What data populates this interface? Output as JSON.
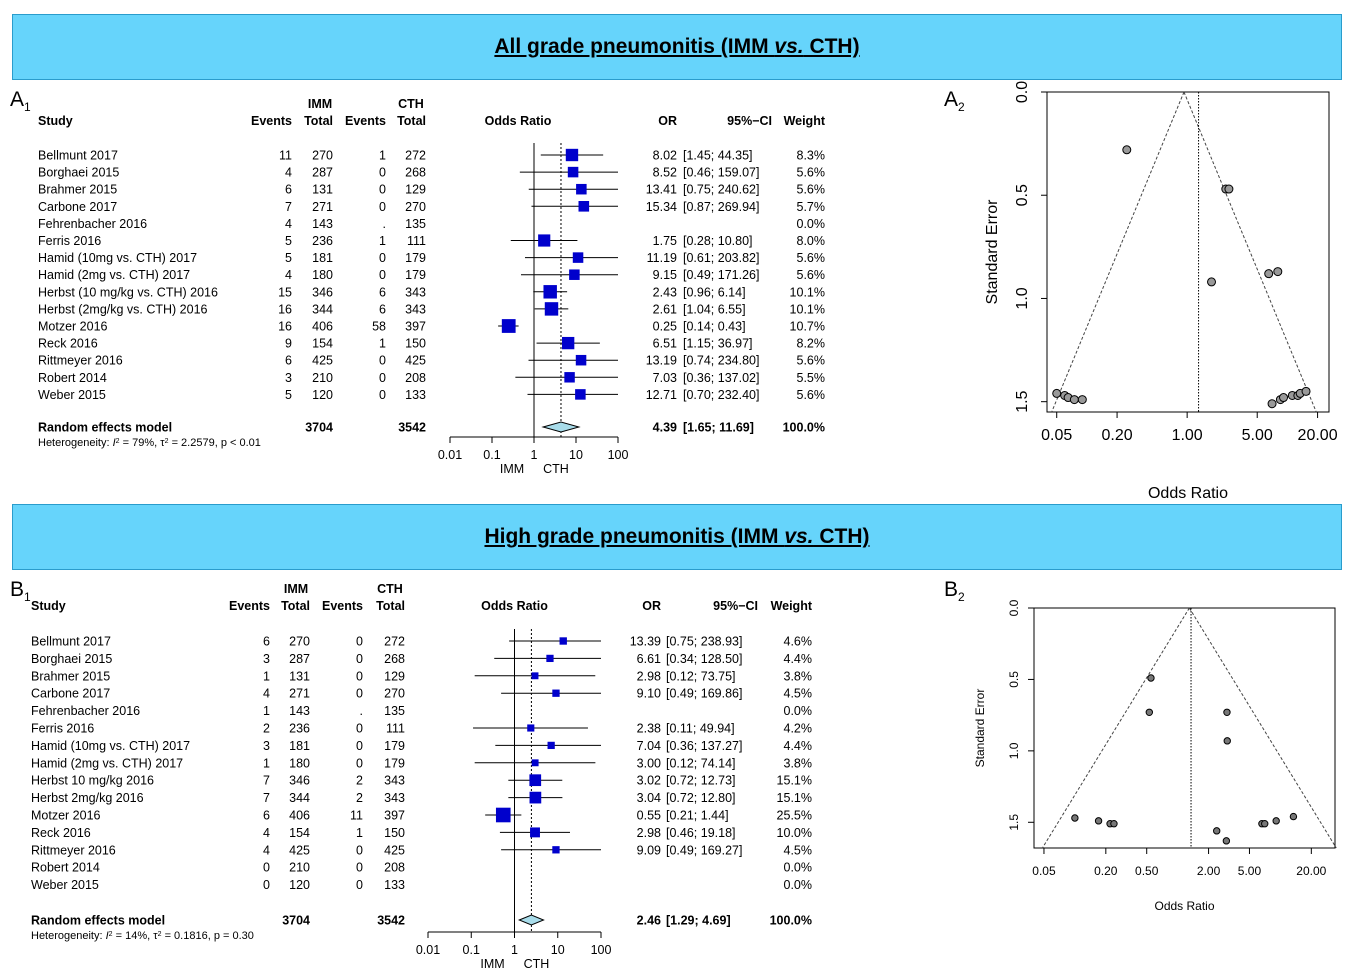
{
  "panels": [
    {
      "letter": "A",
      "title_main": "All grade pneumonitis (IMM ",
      "title_vs": "vs.",
      "title_tail": " CTH)",
      "forest_label": "A",
      "forest_sub": "1",
      "funnel_label": "A",
      "funnel_sub": "2"
    },
    {
      "letter": "B",
      "title_main": "High grade pneumonitis (IMM ",
      "title_vs": "vs.",
      "title_tail": " CTH)",
      "forest_label": "B",
      "forest_sub": "1",
      "funnel_label": "B",
      "funnel_sub": "2"
    }
  ],
  "chart_data": [
    {
      "type": "forest",
      "headers": {
        "imm": "IMM",
        "cth": "CTH",
        "study": "Study",
        "events": "Events",
        "total": "Total",
        "odds_ratio": "Odds Ratio",
        "or": "OR",
        "ci": "95%−CI",
        "weight": "Weight"
      },
      "studies": [
        {
          "study": "Bellmunt 2017",
          "imm_events": "11",
          "imm_total": "270",
          "cth_events": "1",
          "cth_total": "272",
          "or": 8.02,
          "lo": 1.45,
          "hi": 44.35,
          "or_text": "8.02",
          "ci_text": "[1.45; 44.35]",
          "weight": "8.3%"
        },
        {
          "study": "Borghaei 2015",
          "imm_events": "4",
          "imm_total": "287",
          "cth_events": "0",
          "cth_total": "268",
          "or": 8.52,
          "lo": 0.46,
          "hi": 159.07,
          "or_text": "8.52",
          "ci_text": "[0.46; 159.07]",
          "weight": "5.6%"
        },
        {
          "study": "Brahmer 2015",
          "imm_events": "6",
          "imm_total": "131",
          "cth_events": "0",
          "cth_total": "129",
          "or": 13.41,
          "lo": 0.75,
          "hi": 240.62,
          "or_text": "13.41",
          "ci_text": "[0.75; 240.62]",
          "weight": "5.6%"
        },
        {
          "study": "Carbone 2017",
          "imm_events": "7",
          "imm_total": "271",
          "cth_events": "0",
          "cth_total": "270",
          "or": 15.34,
          "lo": 0.87,
          "hi": 269.94,
          "or_text": "15.34",
          "ci_text": "[0.87; 269.94]",
          "weight": "5.7%"
        },
        {
          "study": "Fehrenbacher  2016",
          "imm_events": "4",
          "imm_total": "143",
          "cth_events": ".",
          "cth_total": "135",
          "or": null,
          "lo": null,
          "hi": null,
          "or_text": "",
          "ci_text": "",
          "weight": "0.0%"
        },
        {
          "study": "Ferris 2016",
          "imm_events": "5",
          "imm_total": "236",
          "cth_events": "1",
          "cth_total": "111",
          "or": 1.75,
          "lo": 0.28,
          "hi": 10.8,
          "or_text": "1.75",
          "ci_text": "[0.28; 10.80]",
          "weight": "8.0%"
        },
        {
          "study": "Hamid (10mg vs. CTH) 2017",
          "imm_events": "5",
          "imm_total": "181",
          "cth_events": "0",
          "cth_total": "179",
          "or": 11.19,
          "lo": 0.61,
          "hi": 203.82,
          "or_text": "11.19",
          "ci_text": "[0.61; 203.82]",
          "weight": "5.6%"
        },
        {
          "study": "Hamid (2mg vs. CTH) 2017",
          "imm_events": "4",
          "imm_total": "180",
          "cth_events": "0",
          "cth_total": "179",
          "or": 9.15,
          "lo": 0.49,
          "hi": 171.26,
          "or_text": "9.15",
          "ci_text": "[0.49; 171.26]",
          "weight": "5.6%"
        },
        {
          "study": "Herbst (10 mg/kg vs. CTH) 2016",
          "imm_events": "15",
          "imm_total": "346",
          "cth_events": "6",
          "cth_total": "343",
          "or": 2.43,
          "lo": 0.96,
          "hi": 6.14,
          "or_text": "2.43",
          "ci_text": "[0.96; 6.14]",
          "weight": "10.1%"
        },
        {
          "study": "Herbst (2mg/kg vs. CTH) 2016",
          "imm_events": "16",
          "imm_total": "344",
          "cth_events": "6",
          "cth_total": "343",
          "or": 2.61,
          "lo": 1.04,
          "hi": 6.55,
          "or_text": "2.61",
          "ci_text": "[1.04; 6.55]",
          "weight": "10.1%"
        },
        {
          "study": "Motzer 2016",
          "imm_events": "16",
          "imm_total": "406",
          "cth_events": "58",
          "cth_total": "397",
          "or": 0.25,
          "lo": 0.14,
          "hi": 0.43,
          "or_text": "0.25",
          "ci_text": "[0.14; 0.43]",
          "weight": "10.7%"
        },
        {
          "study": "Reck 2016",
          "imm_events": "9",
          "imm_total": "154",
          "cth_events": "1",
          "cth_total": "150",
          "or": 6.51,
          "lo": 1.15,
          "hi": 36.97,
          "or_text": "6.51",
          "ci_text": "[1.15; 36.97]",
          "weight": "8.2%"
        },
        {
          "study": "Rittmeyer 2016",
          "imm_events": "6",
          "imm_total": "425",
          "cth_events": "0",
          "cth_total": "425",
          "or": 13.19,
          "lo": 0.74,
          "hi": 234.8,
          "or_text": "13.19",
          "ci_text": "[0.74; 234.80]",
          "weight": "5.6%"
        },
        {
          "study": "Robert 2014",
          "imm_events": "3",
          "imm_total": "210",
          "cth_events": "0",
          "cth_total": "208",
          "or": 7.03,
          "lo": 0.36,
          "hi": 137.02,
          "or_text": "7.03",
          "ci_text": "[0.36; 137.02]",
          "weight": "5.5%"
        },
        {
          "study": "Weber 2015",
          "imm_events": "5",
          "imm_total": "120",
          "cth_events": "0",
          "cth_total": "133",
          "or": 12.71,
          "lo": 0.7,
          "hi": 232.4,
          "or_text": "12.71",
          "ci_text": "[0.70; 232.40]",
          "weight": "5.6%"
        }
      ],
      "summary": {
        "label": "Random effects model",
        "imm_total": "3704",
        "cth_total": "3542",
        "or": 4.39,
        "lo": 1.65,
        "hi": 11.69,
        "or_text": "4.39",
        "ci_text": "[1.65; 11.69]",
        "weight": "100.0%"
      },
      "heterogeneity": {
        "prefix": "Heterogeneity: ",
        "i2": "79%",
        "tau2": "2.2579",
        "p": "p < 0.01"
      },
      "x_ticks": [
        "0.01",
        "0.1",
        "1",
        "10",
        "100"
      ],
      "x_tick_values": [
        0.01,
        0.1,
        1,
        10,
        100
      ],
      "axis_caption_left": "IMM",
      "axis_caption_right": "CTH",
      "xlim": [
        0.01,
        100
      ],
      "x_scale": "log",
      "summary_line": 4.39
    },
    {
      "type": "funnel",
      "xlabel": "Odds Ratio",
      "ylabel": "Standard Error",
      "x_scale": "log",
      "xlim": [
        0.04,
        26
      ],
      "ylim": [
        1.55,
        0
      ],
      "x_ticks": [
        "0.05",
        "0.20",
        "1.00",
        "5.00",
        "20.00"
      ],
      "x_tick_values": [
        0.05,
        0.2,
        1,
        5,
        20
      ],
      "y_ticks": [
        "0.0",
        "0.5",
        "1.0",
        "1.5"
      ],
      "y_tick_values": [
        0,
        0.5,
        1.0,
        1.5
      ],
      "pooled_or": 1.3,
      "apex_or": 0.93,
      "points": [
        {
          "or": 0.25,
          "se": 0.28
        },
        {
          "or": 2.43,
          "se": 0.47
        },
        {
          "or": 2.61,
          "se": 0.47
        },
        {
          "or": 1.75,
          "se": 0.92
        },
        {
          "or": 6.51,
          "se": 0.88
        },
        {
          "or": 8.02,
          "se": 0.87
        },
        {
          "or": 0.05,
          "se": 1.46
        },
        {
          "or": 0.06,
          "se": 1.47
        },
        {
          "or": 0.065,
          "se": 1.48
        },
        {
          "or": 0.075,
          "se": 1.49
        },
        {
          "or": 0.09,
          "se": 1.49
        },
        {
          "or": 7.03,
          "se": 1.51
        },
        {
          "or": 8.52,
          "se": 1.49
        },
        {
          "or": 9.15,
          "se": 1.48
        },
        {
          "or": 11.19,
          "se": 1.47
        },
        {
          "or": 12.71,
          "se": 1.47
        },
        {
          "or": 13.41,
          "se": 1.46
        },
        {
          "or": 15.34,
          "se": 1.45
        }
      ]
    },
    {
      "type": "forest",
      "headers": {
        "imm": "IMM",
        "cth": "CTH",
        "study": "Study",
        "events": "Events",
        "total": "Total",
        "odds_ratio": "Odds Ratio",
        "or": "OR",
        "ci": "95%−CI",
        "weight": "Weight"
      },
      "studies": [
        {
          "study": "Bellmunt 2017",
          "imm_events": "6",
          "imm_total": "270",
          "cth_events": "0",
          "cth_total": "272",
          "or": 13.39,
          "lo": 0.75,
          "hi": 238.93,
          "or_text": "13.39",
          "ci_text": "[0.75; 238.93]",
          "weight": "4.6%"
        },
        {
          "study": "Borghaei 2015",
          "imm_events": "3",
          "imm_total": "287",
          "cth_events": "0",
          "cth_total": "268",
          "or": 6.61,
          "lo": 0.34,
          "hi": 128.5,
          "or_text": "6.61",
          "ci_text": "[0.34; 128.50]",
          "weight": "4.4%"
        },
        {
          "study": "Brahmer 2015",
          "imm_events": "1",
          "imm_total": "131",
          "cth_events": "0",
          "cth_total": "129",
          "or": 2.98,
          "lo": 0.12,
          "hi": 73.75,
          "or_text": "2.98",
          "ci_text": "[0.12; 73.75]",
          "weight": "3.8%"
        },
        {
          "study": "Carbone 2017",
          "imm_events": "4",
          "imm_total": "271",
          "cth_events": "0",
          "cth_total": "270",
          "or": 9.1,
          "lo": 0.49,
          "hi": 169.86,
          "or_text": "9.10",
          "ci_text": "[0.49; 169.86]",
          "weight": "4.5%"
        },
        {
          "study": "Fehrenbacher  2016",
          "imm_events": "1",
          "imm_total": "143",
          "cth_events": ".",
          "cth_total": "135",
          "or": null,
          "lo": null,
          "hi": null,
          "or_text": "",
          "ci_text": "",
          "weight": "0.0%"
        },
        {
          "study": "Ferris 2016",
          "imm_events": "2",
          "imm_total": "236",
          "cth_events": "0",
          "cth_total": "111",
          "or": 2.38,
          "lo": 0.11,
          "hi": 49.94,
          "or_text": "2.38",
          "ci_text": "[0.11; 49.94]",
          "weight": "4.2%"
        },
        {
          "study": "Hamid (10mg vs. CTH) 2017",
          "imm_events": "3",
          "imm_total": "181",
          "cth_events": "0",
          "cth_total": "179",
          "or": 7.04,
          "lo": 0.36,
          "hi": 137.27,
          "or_text": "7.04",
          "ci_text": "[0.36; 137.27]",
          "weight": "4.4%"
        },
        {
          "study": "Hamid (2mg vs. CTH) 2017",
          "imm_events": "1",
          "imm_total": "180",
          "cth_events": "0",
          "cth_total": "179",
          "or": 3.0,
          "lo": 0.12,
          "hi": 74.14,
          "or_text": "3.00",
          "ci_text": "[0.12; 74.14]",
          "weight": "3.8%"
        },
        {
          "study": "Herbst 10 mg/kg 2016",
          "imm_events": "7",
          "imm_total": "346",
          "cth_events": "2",
          "cth_total": "343",
          "or": 3.02,
          "lo": 0.72,
          "hi": 12.73,
          "or_text": "3.02",
          "ci_text": "[0.72; 12.73]",
          "weight": "15.1%"
        },
        {
          "study": "Herbst 2mg/kg 2016",
          "imm_events": "7",
          "imm_total": "344",
          "cth_events": "2",
          "cth_total": "343",
          "or": 3.04,
          "lo": 0.72,
          "hi": 12.8,
          "or_text": "3.04",
          "ci_text": "[0.72; 12.80]",
          "weight": "15.1%"
        },
        {
          "study": "Motzer 2016",
          "imm_events": "6",
          "imm_total": "406",
          "cth_events": "11",
          "cth_total": "397",
          "or": 0.55,
          "lo": 0.21,
          "hi": 1.44,
          "or_text": "0.55",
          "ci_text": "[0.21; 1.44]",
          "weight": "25.5%"
        },
        {
          "study": "Reck 2016",
          "imm_events": "4",
          "imm_total": "154",
          "cth_events": "1",
          "cth_total": "150",
          "or": 2.98,
          "lo": 0.46,
          "hi": 19.18,
          "or_text": "2.98",
          "ci_text": "[0.46; 19.18]",
          "weight": "10.0%"
        },
        {
          "study": "Rittmeyer 2016",
          "imm_events": "4",
          "imm_total": "425",
          "cth_events": "0",
          "cth_total": "425",
          "or": 9.09,
          "lo": 0.49,
          "hi": 169.27,
          "or_text": "9.09",
          "ci_text": "[0.49; 169.27]",
          "weight": "4.5%"
        },
        {
          "study": "Robert 2014",
          "imm_events": "0",
          "imm_total": "210",
          "cth_events": "0",
          "cth_total": "208",
          "or": null,
          "lo": null,
          "hi": null,
          "or_text": "",
          "ci_text": "",
          "weight": "0.0%"
        },
        {
          "study": "Weber 2015",
          "imm_events": "0",
          "imm_total": "120",
          "cth_events": "0",
          "cth_total": "133",
          "or": null,
          "lo": null,
          "hi": null,
          "or_text": "",
          "ci_text": "",
          "weight": "0.0%"
        }
      ],
      "summary": {
        "label": "Random effects model",
        "imm_total": "3704",
        "cth_total": "3542",
        "or": 2.46,
        "lo": 1.29,
        "hi": 4.69,
        "or_text": "2.46",
        "ci_text": "[1.29;  4.69]",
        "weight": "100.0%"
      },
      "heterogeneity": {
        "prefix": "Heterogeneity: ",
        "i2": "14%",
        "tau2": "0.1816",
        "p": "p = 0.30"
      },
      "x_ticks": [
        "0.01",
        "0.1",
        "1",
        "10",
        "100"
      ],
      "x_tick_values": [
        0.01,
        0.1,
        1,
        10,
        100
      ],
      "axis_caption_left": "IMM",
      "axis_caption_right": "CTH",
      "xlim": [
        0.01,
        100
      ],
      "x_scale": "log",
      "summary_line": 2.46
    },
    {
      "type": "funnel",
      "xlabel": "Odds Ratio",
      "ylabel": "Standard Error",
      "x_scale": "log",
      "xlim": [
        0.04,
        34
      ],
      "ylim": [
        1.68,
        0
      ],
      "x_ticks": [
        "0.05",
        "0.20",
        "0.50",
        "2.00",
        "5.00",
        "20.00"
      ],
      "x_tick_values": [
        0.05,
        0.2,
        0.5,
        2,
        5,
        20
      ],
      "y_ticks": [
        "0.0",
        "0.5",
        "1.0",
        "1.5"
      ],
      "y_tick_values": [
        0,
        0.5,
        1.0,
        1.5
      ],
      "pooled_or": 1.35,
      "apex_or": 1.3,
      "points": [
        {
          "or": 0.55,
          "se": 0.49
        },
        {
          "or": 0.53,
          "se": 0.73
        },
        {
          "or": 3.02,
          "se": 0.73
        },
        {
          "or": 3.04,
          "se": 0.93
        },
        {
          "or": 0.1,
          "se": 1.47
        },
        {
          "or": 0.17,
          "se": 1.49
        },
        {
          "or": 0.22,
          "se": 1.51
        },
        {
          "or": 0.24,
          "se": 1.51
        },
        {
          "or": 2.4,
          "se": 1.56
        },
        {
          "or": 2.98,
          "se": 1.63
        },
        {
          "or": 6.61,
          "se": 1.51
        },
        {
          "or": 7.04,
          "se": 1.51
        },
        {
          "or": 9.1,
          "se": 1.49
        },
        {
          "or": 13.39,
          "se": 1.46
        }
      ]
    }
  ]
}
